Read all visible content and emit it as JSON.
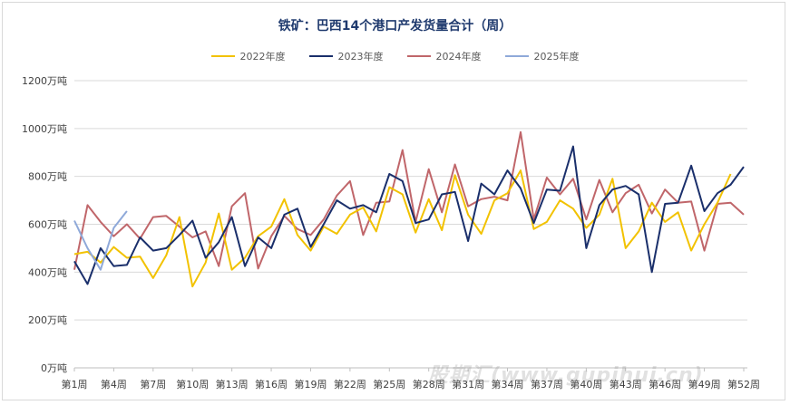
{
  "chart_data": {
    "type": "line",
    "title": "铁矿：巴西14个港口产发货量合计（周）",
    "xlabel": "",
    "ylabel": "",
    "ylim": [
      0,
      1200
    ],
    "yticks": [
      "0万吨",
      "200万吨",
      "400万吨",
      "600万吨",
      "800万吨",
      "1000万吨",
      "1200万吨"
    ],
    "x_tick_labels": [
      "第1周",
      "第4周",
      "第7周",
      "第10周",
      "第13周",
      "第16周",
      "第19周",
      "第22周",
      "第25周",
      "第28周",
      "第31周",
      "第34周",
      "第37周",
      "第40周",
      "第43周",
      "第46周",
      "第49周",
      "第52周"
    ],
    "grid": "horizontal",
    "legend_position": "top",
    "series": [
      {
        "name": "2022年度",
        "color": "#f2c200",
        "values": [
          475,
          485,
          440,
          505,
          460,
          465,
          375,
          470,
          630,
          340,
          440,
          645,
          410,
          460,
          550,
          590,
          705,
          555,
          490,
          590,
          560,
          640,
          670,
          570,
          755,
          725,
          565,
          705,
          575,
          805,
          640,
          560,
          700,
          730,
          825,
          580,
          610,
          700,
          665,
          585,
          640,
          790,
          500,
          570,
          690,
          610,
          650,
          490,
          600,
          690,
          810
        ]
      },
      {
        "name": "2023年度",
        "color": "#1a2f6b",
        "values": [
          445,
          350,
          500,
          425,
          430,
          545,
          490,
          500,
          555,
          615,
          460,
          525,
          630,
          425,
          545,
          500,
          640,
          665,
          505,
          600,
          700,
          665,
          680,
          650,
          810,
          780,
          605,
          620,
          725,
          735,
          530,
          770,
          725,
          825,
          750,
          605,
          745,
          740,
          925,
          500,
          680,
          745,
          760,
          725,
          400,
          685,
          690,
          845,
          655,
          730,
          765,
          840
        ]
      },
      {
        "name": "2024年度",
        "color": "#c0666a",
        "values": [
          410,
          680,
          610,
          550,
          600,
          540,
          630,
          635,
          590,
          545,
          570,
          425,
          675,
          730,
          415,
          550,
          635,
          580,
          555,
          620,
          720,
          780,
          555,
          690,
          695,
          910,
          610,
          830,
          650,
          850,
          675,
          705,
          715,
          700,
          985,
          620,
          795,
          725,
          790,
          620,
          785,
          650,
          730,
          765,
          645,
          745,
          690,
          695,
          490,
          685,
          690,
          640
        ]
      },
      {
        "name": "2025年度",
        "color": "#8fa9d9",
        "values": [
          615,
          500,
          410,
          585,
          655
        ]
      }
    ]
  }
}
